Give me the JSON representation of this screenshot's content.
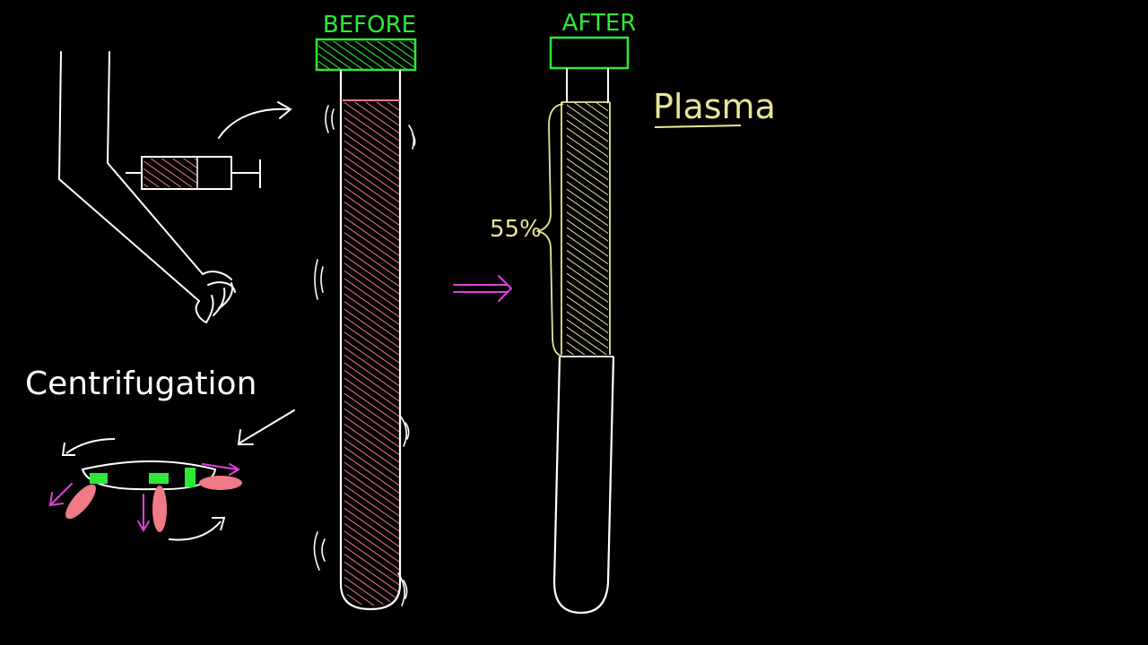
{
  "labels": {
    "before": "BEFORE",
    "after": "AFTER",
    "plasma": "Plasma",
    "percent": "55%",
    "centrifugation": "Centrifugation"
  },
  "colors": {
    "background": "#000000",
    "chalk": "#ffffff",
    "blood": "#f07a86",
    "plasma": "#e8e49a",
    "cap": "#2ee83a",
    "arrow": "#e040e0"
  },
  "icons": {
    "arm": "arm-drawing",
    "syringe": "syringe-icon",
    "centrifuge": "centrifuge-icon"
  }
}
